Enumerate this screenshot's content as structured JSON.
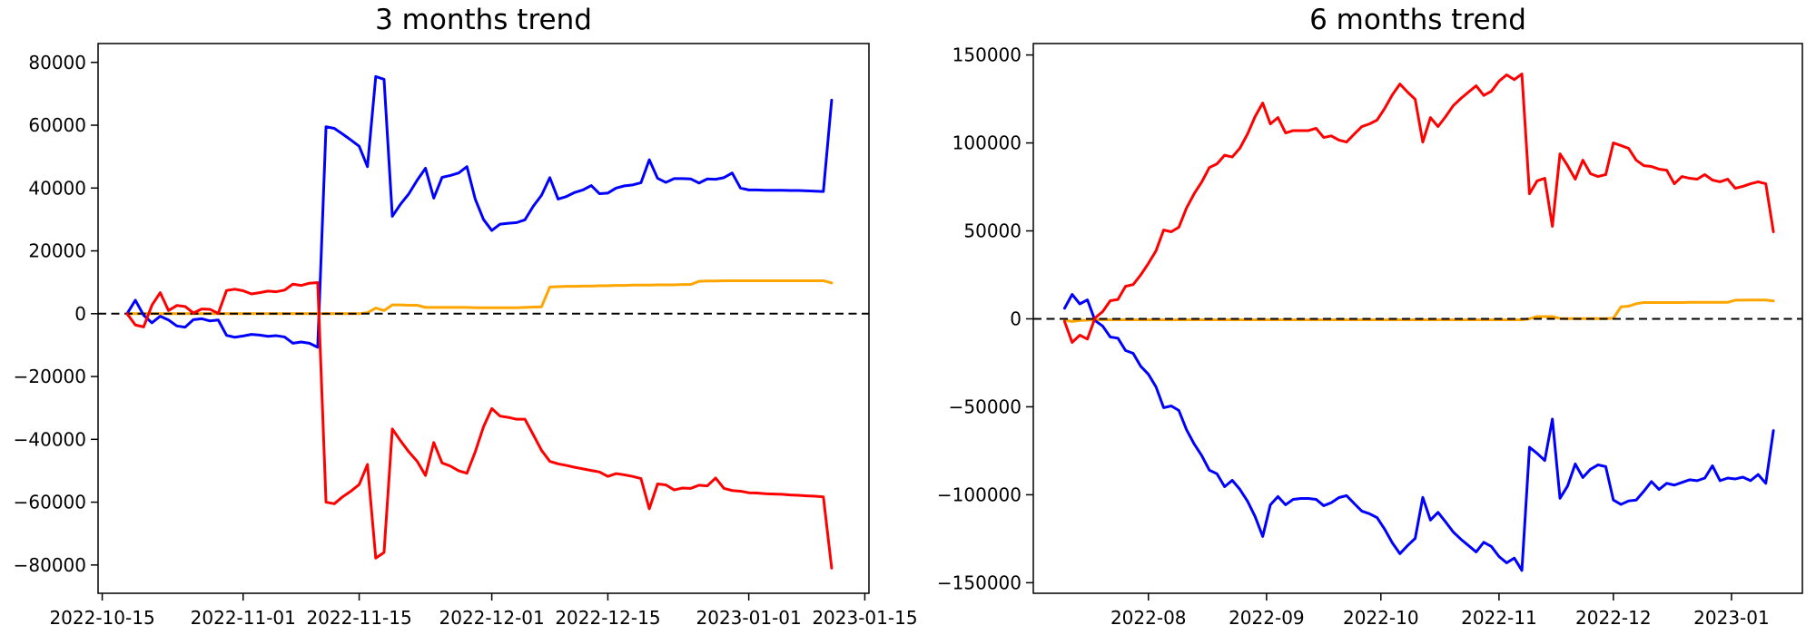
{
  "figure": {
    "background": "#ffffff",
    "axis_color": "#000000"
  },
  "titles": {
    "left": "3 months trend",
    "right": "6 months trend"
  },
  "chart_data": [
    {
      "name": "3-months-trend-chart",
      "type": "line",
      "title": "3 months trend",
      "x_start_date": "2022-10-18",
      "x_step_days": 1,
      "xlim_days": [
        -3.5,
        89.5
      ],
      "ylim": [
        -89000,
        86000
      ],
      "zero_line": true,
      "grid": false,
      "legend": "none",
      "x_ticks": [
        {
          "label": "2022-10-15",
          "day": -3
        },
        {
          "label": "2022-11-01",
          "day": 14
        },
        {
          "label": "2022-11-15",
          "day": 28
        },
        {
          "label": "2022-12-01",
          "day": 44
        },
        {
          "label": "2022-12-15",
          "day": 58
        },
        {
          "label": "2023-01-01",
          "day": 75
        },
        {
          "label": "2023-01-15",
          "day": 89
        }
      ],
      "y_ticks": [
        {
          "label": "80000",
          "value": 80000
        },
        {
          "label": "60000",
          "value": 60000
        },
        {
          "label": "40000",
          "value": 40000
        },
        {
          "label": "20000",
          "value": 20000
        },
        {
          "label": "0",
          "value": 0
        },
        {
          "label": "−20000",
          "value": -20000
        },
        {
          "label": "−40000",
          "value": -40000
        },
        {
          "label": "−60000",
          "value": -60000
        },
        {
          "label": "−80000",
          "value": -80000
        }
      ],
      "series": [
        {
          "name": "orange-series",
          "color": "#ffa500",
          "under_zero_line": true,
          "values": [
            0,
            0,
            0,
            0,
            0,
            0,
            0,
            0,
            0,
            0,
            0,
            0,
            0,
            0,
            0,
            0,
            0,
            0,
            0,
            0,
            0,
            0,
            0,
            0,
            0,
            0,
            0,
            0,
            0,
            300,
            1800,
            1000,
            2800,
            2800,
            2700,
            2700,
            2000,
            2000,
            2000,
            2000,
            2000,
            2000,
            1900,
            1900,
            1900,
            1900,
            1900,
            1900,
            2000,
            2100,
            2200,
            8500,
            8600,
            8700,
            8700,
            8800,
            8800,
            8900,
            8900,
            9000,
            9000,
            9100,
            9100,
            9100,
            9200,
            9200,
            9200,
            9300,
            9300,
            10300,
            10400,
            10400,
            10500,
            10500,
            10500,
            10500,
            10500,
            10500,
            10500,
            10500,
            10500,
            10500,
            10500,
            10500,
            10500,
            9800
          ]
        },
        {
          "name": "blue-series",
          "color": "#0000ff",
          "under_zero_line": false,
          "values": [
            0,
            4300,
            -500,
            -2900,
            -800,
            -2000,
            -3900,
            -4300,
            -1900,
            -1600,
            -2300,
            -2000,
            -6900,
            -7500,
            -7100,
            -6600,
            -6800,
            -7200,
            -7000,
            -7400,
            -9400,
            -9000,
            -9400,
            -10700,
            59500,
            59000,
            57200,
            55300,
            53300,
            46800,
            75500,
            74600,
            31000,
            34900,
            38200,
            42500,
            46300,
            36800,
            43400,
            44000,
            44800,
            46800,
            36500,
            30000,
            26500,
            28500,
            28800,
            29000,
            29900,
            34200,
            37700,
            43300,
            36500,
            37300,
            38600,
            39400,
            40800,
            38200,
            38400,
            40000,
            40700,
            41000,
            41700,
            49000,
            43100,
            41800,
            43000,
            43000,
            42900,
            41600,
            42900,
            42800,
            43300,
            44800,
            40000,
            39400,
            39400,
            39300,
            39300,
            39300,
            39200,
            39200,
            39100,
            39000,
            38900,
            68000
          ]
        },
        {
          "name": "red-series",
          "color": "#ff0000",
          "under_zero_line": false,
          "values": [
            0,
            -3600,
            -4200,
            2700,
            6700,
            1000,
            2600,
            2300,
            200,
            1500,
            1400,
            100,
            7400,
            7800,
            7300,
            6300,
            6700,
            7200,
            7000,
            7500,
            9400,
            9000,
            9700,
            9900,
            -60000,
            -60500,
            -58300,
            -56500,
            -54400,
            -48000,
            -77800,
            -76000,
            -36700,
            -40500,
            -44000,
            -47000,
            -51500,
            -41000,
            -47500,
            -48500,
            -50000,
            -50800,
            -44000,
            -36000,
            -30200,
            -32600,
            -33000,
            -33600,
            -33600,
            -38500,
            -43500,
            -47000,
            -47800,
            -48300,
            -48900,
            -49400,
            -49900,
            -50400,
            -51800,
            -50900,
            -51300,
            -51800,
            -52500,
            -62100,
            -54200,
            -54500,
            -56100,
            -55500,
            -55600,
            -54600,
            -54800,
            -52300,
            -55600,
            -56300,
            -56500,
            -57000,
            -57100,
            -57300,
            -57400,
            -57500,
            -57700,
            -57800,
            -58000,
            -58100,
            -58300,
            -81000
          ]
        }
      ]
    },
    {
      "name": "6-months-trend-chart",
      "type": "line",
      "title": "6 months trend",
      "x_start_date": "2022-07-10",
      "x_step_days": 2,
      "xlim_days": [
        -8.2,
        193.6
      ],
      "ylim": [
        -156000,
        156500
      ],
      "zero_line": true,
      "grid": false,
      "legend": "none",
      "x_ticks": [
        {
          "label": "2022-08",
          "day": 22
        },
        {
          "label": "2022-09",
          "day": 53
        },
        {
          "label": "2022-10",
          "day": 83
        },
        {
          "label": "2022-11",
          "day": 114
        },
        {
          "label": "2022-12",
          "day": 144
        },
        {
          "label": "2023-01",
          "day": 175
        }
      ],
      "y_ticks": [
        {
          "label": "150000",
          "value": 150000
        },
        {
          "label": "100000",
          "value": 100000
        },
        {
          "label": "50000",
          "value": 50000
        },
        {
          "label": "0",
          "value": 0
        },
        {
          "label": "−50000",
          "value": -50000
        },
        {
          "label": "−100000",
          "value": -100000
        },
        {
          "label": "−150000",
          "value": -150000
        }
      ],
      "series": [
        {
          "name": "orange-series",
          "color": "#ffa500",
          "under_zero_line": true,
          "values": [
            -700,
            -1500,
            -900,
            -700,
            -500,
            -500,
            -500,
            -500,
            -500,
            -500,
            -500,
            -500,
            -500,
            -500,
            -500,
            -500,
            -500,
            -500,
            -500,
            -500,
            -500,
            -500,
            -500,
            -500,
            -500,
            -500,
            -500,
            -500,
            -500,
            -500,
            -500,
            -500,
            -500,
            -500,
            -500,
            -500,
            -500,
            -500,
            -500,
            -500,
            -500,
            -500,
            -500,
            -500,
            -500,
            -500,
            -500,
            -500,
            -500,
            -500,
            -500,
            -500,
            -500,
            -500,
            -500,
            -500,
            -500,
            -500,
            -500,
            -500,
            -500,
            0,
            1300,
            1300,
            1300,
            200,
            100,
            100,
            100,
            100,
            100,
            100,
            300,
            6800,
            7200,
            8600,
            9300,
            9300,
            9300,
            9300,
            9300,
            9300,
            9400,
            9400,
            9400,
            9400,
            9400,
            9400,
            10600,
            10600,
            10700,
            10700,
            10700,
            10200
          ]
        },
        {
          "name": "blue-series",
          "color": "#0000ff",
          "under_zero_line": false,
          "values": [
            6000,
            13900,
            8500,
            10800,
            -1000,
            -4100,
            -10300,
            -11000,
            -18000,
            -19600,
            -27000,
            -31500,
            -38700,
            -50500,
            -49500,
            -52100,
            -63000,
            -71100,
            -77800,
            -86000,
            -88100,
            -95400,
            -91800,
            -96900,
            -103600,
            -112400,
            -123700,
            -105700,
            -101000,
            -105700,
            -102600,
            -102100,
            -102100,
            -102600,
            -106200,
            -104500,
            -101600,
            -100500,
            -105000,
            -109300,
            -110800,
            -113000,
            -119600,
            -127300,
            -133500,
            -128900,
            -124800,
            -101500,
            -114400,
            -110000,
            -115500,
            -121200,
            -125300,
            -128900,
            -132500,
            -127000,
            -129400,
            -135100,
            -138700,
            -136000,
            -143000,
            -73000,
            -76500,
            -80500,
            -57000,
            -102000,
            -95000,
            -82500,
            -90200,
            -85500,
            -83000,
            -84000,
            -103000,
            -105500,
            -103500,
            -103000,
            -98000,
            -92500,
            -97000,
            -93500,
            -94500,
            -93000,
            -91500,
            -92000,
            -90500,
            -83500,
            -92000,
            -90500,
            -91000,
            -90000,
            -92000,
            -88500,
            -93500,
            -63500
          ]
        },
        {
          "name": "red-series",
          "color": "#ff0000",
          "under_zero_line": false,
          "values": [
            -1500,
            -13400,
            -9300,
            -11500,
            500,
            4100,
            10300,
            11000,
            18500,
            19500,
            25000,
            31500,
            38700,
            50500,
            49500,
            52100,
            63000,
            71100,
            77800,
            86000,
            88100,
            93000,
            92000,
            97000,
            105000,
            115000,
            122700,
            110800,
            114400,
            105700,
            107000,
            107000,
            107000,
            108300,
            103100,
            104000,
            101600,
            100500,
            105000,
            109300,
            110800,
            113000,
            119600,
            127300,
            133500,
            128900,
            124800,
            100500,
            114400,
            109300,
            115000,
            121200,
            125300,
            128900,
            132500,
            127000,
            129400,
            135100,
            138700,
            136000,
            139200,
            71100,
            78400,
            79900,
            52600,
            93800,
            87100,
            79400,
            90200,
            82500,
            80900,
            82000,
            100000,
            98500,
            96900,
            90200,
            87100,
            86600,
            85100,
            84500,
            76800,
            80900,
            79900,
            79400,
            82000,
            78900,
            77900,
            79400,
            74200,
            75300,
            76800,
            77900,
            76800,
            49500
          ]
        }
      ]
    }
  ]
}
